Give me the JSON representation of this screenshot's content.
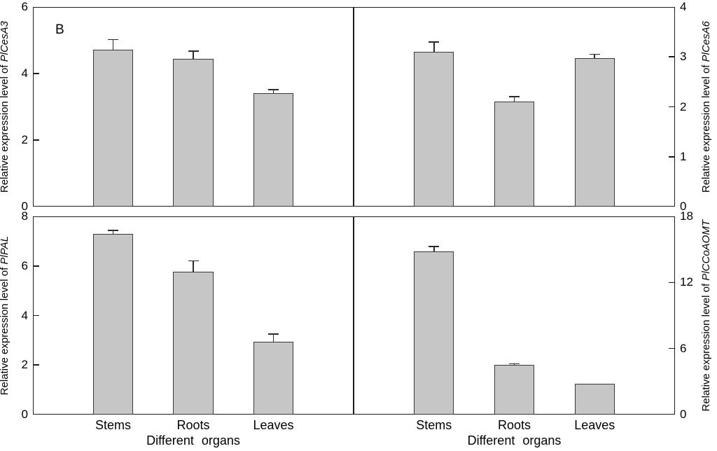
{
  "figure": {
    "panel_label": "B",
    "background": "#ffffff",
    "colors": {
      "bar_fill": "#c6c6c6",
      "bar_border": "#383838",
      "axis": "#1c1c1c",
      "text": "#000000"
    }
  },
  "chart_data": [
    {
      "type": "bar",
      "position": "top-left",
      "ylabel_prefix": "Relative expression level of ",
      "gene": "PlCesA3",
      "y_axis_side": "left",
      "ylim": [
        0,
        6
      ],
      "yticks": [
        0,
        2,
        4,
        6
      ],
      "categories": [
        "Stems",
        "Roots",
        "Leaves"
      ],
      "values": [
        4.72,
        4.45,
        3.42
      ],
      "errors": [
        0.3,
        0.22,
        0.1
      ],
      "x_tick_labels_visible": false,
      "xlabel": "",
      "grid": false
    },
    {
      "type": "bar",
      "position": "top-right",
      "ylabel_prefix": "Relative expression level of ",
      "gene": "PlCesA6",
      "y_axis_side": "right",
      "ylim": [
        0,
        4
      ],
      "yticks": [
        0,
        1,
        2,
        3,
        4
      ],
      "categories": [
        "Stems",
        "Roots",
        "Leaves"
      ],
      "values": [
        3.1,
        2.1,
        2.97
      ],
      "errors": [
        0.2,
        0.1,
        0.08
      ],
      "x_tick_labels_visible": false,
      "xlabel": "",
      "grid": false
    },
    {
      "type": "bar",
      "position": "bottom-left",
      "ylabel_prefix": "Relative expression level of ",
      "gene": "PlPAL",
      "y_axis_side": "left",
      "ylim": [
        0,
        8
      ],
      "yticks": [
        0,
        2,
        4,
        6,
        8
      ],
      "categories": [
        "Stems",
        "Roots",
        "Leaves"
      ],
      "values": [
        7.3,
        5.76,
        2.95
      ],
      "errors": [
        0.14,
        0.45,
        0.3
      ],
      "x_tick_labels_visible": true,
      "xlabel": "Different organs",
      "grid": false
    },
    {
      "type": "bar",
      "position": "bottom-right",
      "ylabel_prefix": "Relative expression level of ",
      "gene": "PlCCoAOMT",
      "y_axis_side": "right",
      "ylim": [
        0,
        18
      ],
      "yticks": [
        0,
        6,
        12,
        18
      ],
      "categories": [
        "Stems",
        "Roots",
        "Leaves"
      ],
      "values": [
        14.8,
        4.5,
        2.8
      ],
      "errors": [
        0.45,
        0.12,
        0
      ],
      "x_tick_labels_visible": true,
      "xlabel": "Different organs",
      "grid": false
    }
  ]
}
